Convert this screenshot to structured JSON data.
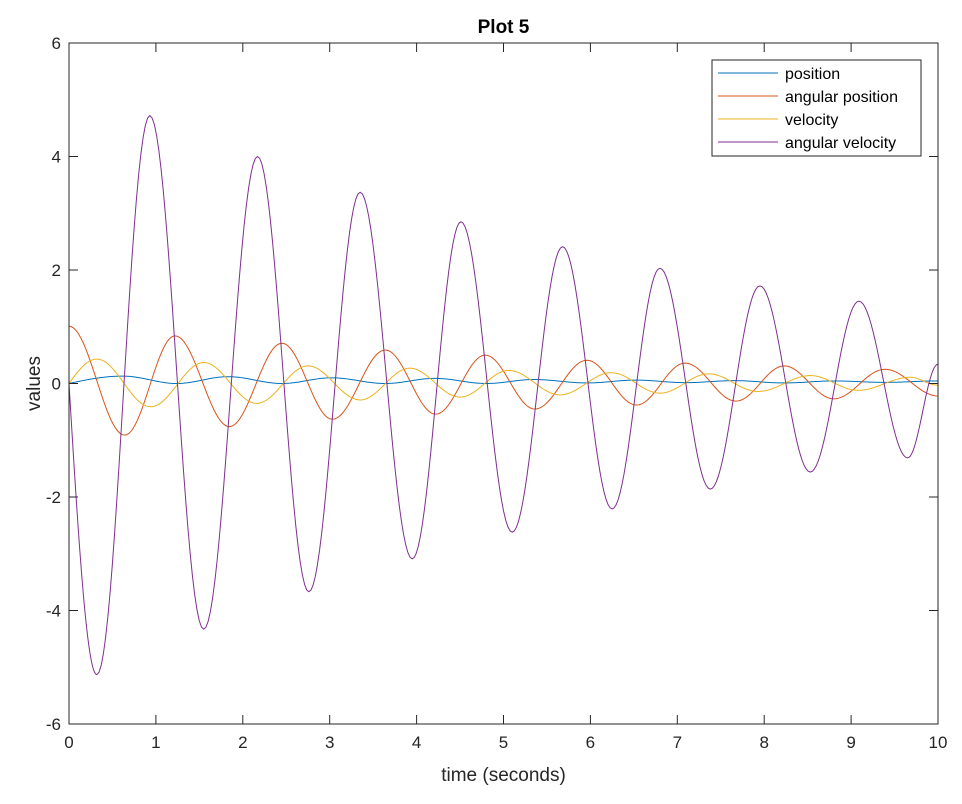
{
  "chart_data": {
    "type": "line",
    "title": "Plot 5",
    "xlabel": "time (seconds)",
    "ylabel": "values",
    "xlim": [
      0,
      10
    ],
    "ylim": [
      -6,
      6
    ],
    "xticks": [
      "0",
      "1",
      "2",
      "3",
      "4",
      "5",
      "6",
      "7",
      "8",
      "9",
      "10"
    ],
    "yticks": [
      "-6",
      "-4",
      "-2",
      "0",
      "2",
      "4",
      "6"
    ],
    "grid": false,
    "box": true,
    "legend_position": "top-right",
    "series": [
      {
        "name": "position",
        "color": "#0072BD",
        "x": [
          0,
          0.62,
          1.24,
          1.83,
          2.45,
          3.02,
          3.64,
          4.21,
          4.8,
          5.35,
          5.96,
          6.53,
          7.09,
          7.66,
          8.23,
          8.8,
          9.39,
          10
        ],
        "y": [
          0,
          0.13,
          0.0,
          0.12,
          0.0,
          0.1,
          0.0,
          0.09,
          0.0,
          0.07,
          0.01,
          0.06,
          0.015,
          0.05,
          0.01,
          0.045,
          0.02,
          0.045
        ]
      },
      {
        "name": "angular position",
        "color": "#D95319",
        "x": [
          0,
          0.64,
          1.22,
          1.845,
          2.45,
          3.03,
          3.64,
          4.22,
          4.79,
          5.36,
          5.96,
          6.53,
          7.09,
          7.675,
          8.23,
          8.8,
          9.39,
          10
        ],
        "y": [
          1.01,
          -0.91,
          0.84,
          -0.76,
          0.71,
          -0.63,
          0.59,
          -0.54,
          0.5,
          -0.45,
          0.41,
          -0.38,
          0.36,
          -0.31,
          0.31,
          -0.27,
          0.25,
          -0.22
        ]
      },
      {
        "name": "velocity",
        "color": "#EDB120",
        "x": [
          0,
          0.32,
          0.94,
          1.55,
          2.16,
          2.75,
          3.35,
          3.92,
          4.5,
          5.06,
          5.65,
          6.24,
          6.8,
          7.36,
          7.93,
          8.53,
          9.08,
          9.68,
          10
        ],
        "y": [
          0,
          0.43,
          -0.41,
          0.37,
          -0.35,
          0.31,
          -0.29,
          0.27,
          -0.24,
          0.23,
          -0.2,
          0.19,
          -0.17,
          0.17,
          -0.14,
          0.14,
          -0.12,
          0.11,
          -0.03
        ]
      },
      {
        "name": "angular velocity",
        "color": "#7E2F8E",
        "x": [
          0,
          0.32,
          0.93,
          1.55,
          2.17,
          2.76,
          3.35,
          3.95,
          4.51,
          5.1,
          5.68,
          6.25,
          6.8,
          7.38,
          7.95,
          8.53,
          9.09,
          9.65,
          10
        ],
        "y": [
          0,
          -5.13,
          4.72,
          -4.33,
          4.0,
          -3.67,
          3.37,
          -3.09,
          2.85,
          -2.62,
          2.41,
          -2.21,
          2.03,
          -1.86,
          1.72,
          -1.56,
          1.45,
          -1.31,
          0.34
        ]
      }
    ]
  }
}
